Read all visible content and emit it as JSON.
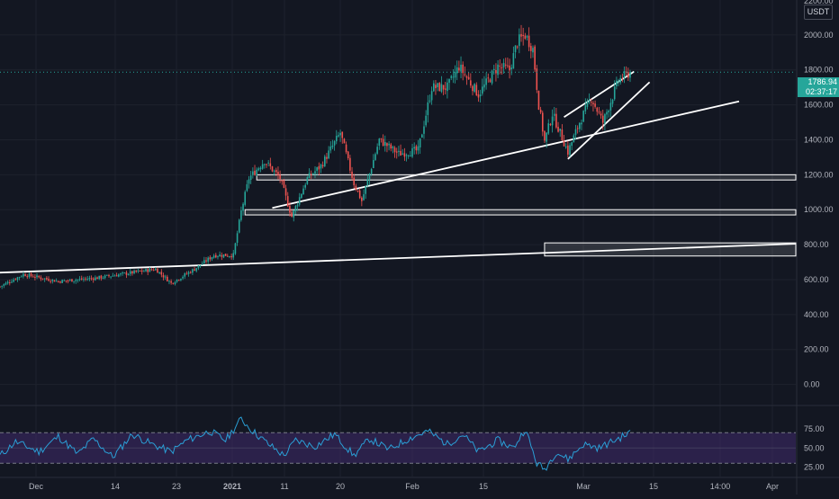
{
  "header": {
    "currency_label": "USDT"
  },
  "current_price": {
    "value": "1786.94",
    "countdown": "02:37:17"
  },
  "colors": {
    "background": "#131722",
    "grid": "#1e222d",
    "up_candle": "#26a69a",
    "down_candle": "#ef5350",
    "drawing_lines": "#ffffff",
    "rsi_line": "#2a9fd6",
    "rsi_band": "#3f2a6b",
    "price_tag": "#26a69a"
  },
  "chart_data": [
    {
      "type": "candlestick",
      "panel": "price",
      "ylim": [
        -100,
        2200
      ],
      "y_ticks": [
        "2000.00",
        "1800.00",
        "1600.00",
        "1400.00",
        "1200.00",
        "1000.00",
        "800.00",
        "600.00",
        "400.00",
        "200.00",
        "0.00"
      ],
      "x_ticks": [
        "Dec",
        "14",
        "23",
        "2021",
        "11",
        "20",
        "Feb",
        "15",
        "Mar",
        "15",
        "14:00",
        "Apr"
      ],
      "y_top_partial_label": "2200.00",
      "approx_close_path": [
        {
          "t": 0,
          "close": 560
        },
        {
          "t": 12,
          "close": 630
        },
        {
          "t": 30,
          "close": 590
        },
        {
          "t": 50,
          "close": 610
        },
        {
          "t": 68,
          "close": 640
        },
        {
          "t": 80,
          "close": 660
        },
        {
          "t": 88,
          "close": 580
        },
        {
          "t": 100,
          "close": 660
        },
        {
          "t": 110,
          "close": 740
        },
        {
          "t": 120,
          "close": 740
        },
        {
          "t": 124,
          "close": 990
        },
        {
          "t": 128,
          "close": 1180
        },
        {
          "t": 136,
          "close": 1280
        },
        {
          "t": 144,
          "close": 1180
        },
        {
          "t": 150,
          "close": 960
        },
        {
          "t": 158,
          "close": 1180
        },
        {
          "t": 165,
          "close": 1250
        },
        {
          "t": 175,
          "close": 1440
        },
        {
          "t": 182,
          "close": 1150
        },
        {
          "t": 186,
          "close": 1050
        },
        {
          "t": 195,
          "close": 1400
        },
        {
          "t": 205,
          "close": 1320
        },
        {
          "t": 215,
          "close": 1340
        },
        {
          "t": 222,
          "close": 1700
        },
        {
          "t": 230,
          "close": 1700
        },
        {
          "t": 236,
          "close": 1820
        },
        {
          "t": 246,
          "close": 1660
        },
        {
          "t": 256,
          "close": 1820
        },
        {
          "t": 262,
          "close": 1800
        },
        {
          "t": 266,
          "close": 1960
        },
        {
          "t": 270,
          "close": 2000
        },
        {
          "t": 274,
          "close": 1920
        },
        {
          "t": 277,
          "close": 1600
        },
        {
          "t": 280,
          "close": 1390
        },
        {
          "t": 284,
          "close": 1550
        },
        {
          "t": 292,
          "close": 1330
        },
        {
          "t": 298,
          "close": 1500
        },
        {
          "t": 304,
          "close": 1640
        },
        {
          "t": 310,
          "close": 1500
        },
        {
          "t": 318,
          "close": 1740
        },
        {
          "t": 324,
          "close": 1787
        }
      ],
      "last_price": 1786.94
    },
    {
      "type": "line",
      "panel": "rsi",
      "ylim": [
        15,
        95
      ],
      "y_ticks": [
        "75.00",
        "50.00",
        "25.00"
      ],
      "band": [
        30,
        70
      ],
      "approx_values": [
        {
          "t": 0,
          "v": 40
        },
        {
          "t": 8,
          "v": 58
        },
        {
          "t": 20,
          "v": 45
        },
        {
          "t": 30,
          "v": 65
        },
        {
          "t": 40,
          "v": 42
        },
        {
          "t": 48,
          "v": 62
        },
        {
          "t": 58,
          "v": 38
        },
        {
          "t": 68,
          "v": 68
        },
        {
          "t": 78,
          "v": 55
        },
        {
          "t": 88,
          "v": 45
        },
        {
          "t": 96,
          "v": 60
        },
        {
          "t": 108,
          "v": 72
        },
        {
          "t": 116,
          "v": 60
        },
        {
          "t": 124,
          "v": 88
        },
        {
          "t": 130,
          "v": 72
        },
        {
          "t": 138,
          "v": 55
        },
        {
          "t": 146,
          "v": 40
        },
        {
          "t": 152,
          "v": 60
        },
        {
          "t": 162,
          "v": 52
        },
        {
          "t": 172,
          "v": 68
        },
        {
          "t": 182,
          "v": 40
        },
        {
          "t": 190,
          "v": 62
        },
        {
          "t": 200,
          "v": 48
        },
        {
          "t": 210,
          "v": 62
        },
        {
          "t": 220,
          "v": 72
        },
        {
          "t": 230,
          "v": 55
        },
        {
          "t": 238,
          "v": 68
        },
        {
          "t": 246,
          "v": 45
        },
        {
          "t": 256,
          "v": 60
        },
        {
          "t": 264,
          "v": 50
        },
        {
          "t": 270,
          "v": 75
        },
        {
          "t": 276,
          "v": 30
        },
        {
          "t": 280,
          "v": 22
        },
        {
          "t": 286,
          "v": 45
        },
        {
          "t": 292,
          "v": 35
        },
        {
          "t": 300,
          "v": 55
        },
        {
          "t": 308,
          "v": 50
        },
        {
          "t": 316,
          "v": 60
        },
        {
          "t": 324,
          "v": 70
        }
      ]
    }
  ],
  "drawings": {
    "trendlines": [
      {
        "from": {
          "t": 0,
          "price": 640
        },
        "to": {
          "t": 410,
          "price": 805
        }
      },
      {
        "from": {
          "t": 140,
          "price": 1010
        },
        "to": {
          "t": 380,
          "price": 1620
        }
      },
      {
        "from": {
          "t": 290,
          "price": 1530
        },
        "to": {
          "t": 326,
          "price": 1790
        }
      },
      {
        "from": {
          "t": 292,
          "price": 1290
        },
        "to": {
          "t": 334,
          "price": 1730
        }
      }
    ],
    "zones": [
      {
        "t_start": 132,
        "low": 1170,
        "high": 1200
      },
      {
        "t_start": 126,
        "low": 970,
        "high": 1000
      },
      {
        "t_start": 280,
        "low": 735,
        "high": 810
      }
    ]
  }
}
